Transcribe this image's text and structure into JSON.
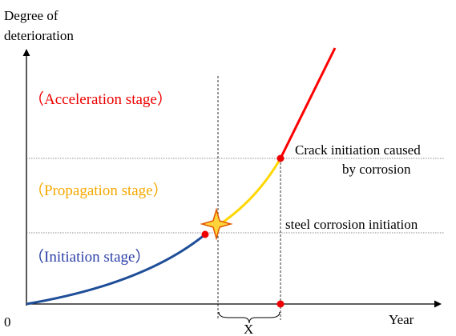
{
  "axes": {
    "y_label_line1": "Degree of",
    "y_label_line2": "deterioration",
    "origin": "0",
    "x_label": "Year"
  },
  "stages": {
    "acceleration": "（Acceleration stage）",
    "propagation": "（Propagation stage）",
    "initiation": "（Initiation stage）"
  },
  "annotations": {
    "crack_line1": "Crack initiation caused",
    "crack_line2": "by corrosion",
    "steel": "steel corrosion initiation",
    "interval": "X"
  }
}
